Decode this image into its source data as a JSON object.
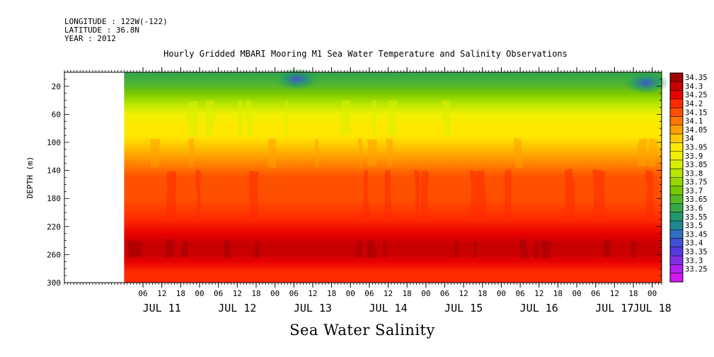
{
  "header": {
    "longitude": "LONGITUDE : 122W(-122)",
    "latitude": "LATITUDE : 36.8N",
    "year": "YEAR : 2012"
  },
  "chart_data": {
    "type": "heatmap",
    "title": "Hourly Gridded MBARI Mooring M1 Sea Water Temperature and Salinity Observations",
    "xlabel": "Sea Water Salinity",
    "ylabel": "DEPTH (m)",
    "y_ticks": [
      20,
      60,
      100,
      140,
      180,
      220,
      260,
      300
    ],
    "ylim": [
      300,
      0
    ],
    "x_range": [
      "2012-07-10T05:00",
      "2012-07-18T03:00"
    ],
    "data_start": "2012-07-11T00:00",
    "x_hour_ticks": [
      {
        "t": "2012-07-11T06:00",
        "label": "06"
      },
      {
        "t": "2012-07-11T12:00",
        "label": "12"
      },
      {
        "t": "2012-07-11T18:00",
        "label": "18"
      },
      {
        "t": "2012-07-12T00:00",
        "label": "00"
      },
      {
        "t": "2012-07-12T06:00",
        "label": "06"
      },
      {
        "t": "2012-07-12T12:00",
        "label": "12"
      },
      {
        "t": "2012-07-12T18:00",
        "label": "18"
      },
      {
        "t": "2012-07-13T00:00",
        "label": "00"
      },
      {
        "t": "2012-07-13T06:00",
        "label": "06"
      },
      {
        "t": "2012-07-13T12:00",
        "label": "12"
      },
      {
        "t": "2012-07-13T18:00",
        "label": "18"
      },
      {
        "t": "2012-07-14T00:00",
        "label": "00"
      },
      {
        "t": "2012-07-14T06:00",
        "label": "06"
      },
      {
        "t": "2012-07-14T12:00",
        "label": "12"
      },
      {
        "t": "2012-07-14T18:00",
        "label": "18"
      },
      {
        "t": "2012-07-15T00:00",
        "label": "00"
      },
      {
        "t": "2012-07-15T06:00",
        "label": "06"
      },
      {
        "t": "2012-07-15T12:00",
        "label": "12"
      },
      {
        "t": "2012-07-15T18:00",
        "label": "18"
      },
      {
        "t": "2012-07-16T00:00",
        "label": "00"
      },
      {
        "t": "2012-07-16T06:00",
        "label": "06"
      },
      {
        "t": "2012-07-16T12:00",
        "label": "12"
      },
      {
        "t": "2012-07-16T18:00",
        "label": "18"
      },
      {
        "t": "2012-07-17T00:00",
        "label": "00"
      },
      {
        "t": "2012-07-17T06:00",
        "label": "06"
      },
      {
        "t": "2012-07-17T12:00",
        "label": "12"
      },
      {
        "t": "2012-07-17T18:00",
        "label": "18"
      },
      {
        "t": "2012-07-18T00:00",
        "label": "00"
      }
    ],
    "x_day_labels": [
      {
        "t": "2012-07-11T12:00",
        "label": "JUL 11"
      },
      {
        "t": "2012-07-12T12:00",
        "label": "JUL 12"
      },
      {
        "t": "2012-07-13T12:00",
        "label": "JUL 13"
      },
      {
        "t": "2012-07-14T12:00",
        "label": "JUL 14"
      },
      {
        "t": "2012-07-15T12:00",
        "label": "JUL 15"
      },
      {
        "t": "2012-07-16T12:00",
        "label": "JUL 16"
      },
      {
        "t": "2012-07-17T12:00",
        "label": "JUL 17"
      },
      {
        "t": "2012-07-18T00:00",
        "label": "JUL 18"
      }
    ],
    "colorbar": {
      "levels": [
        "34.35",
        "34.3",
        "34.25",
        "34.2",
        "34.15",
        "34.1",
        "34.05",
        "34",
        "33.95",
        "33.9",
        "33.85",
        "33.8",
        "33.75",
        "33.7",
        "33.65",
        "33.6",
        "33.55",
        "33.5",
        "33.45",
        "33.4",
        "33.35",
        "33.3",
        "33.25"
      ],
      "colors": [
        "#a00000",
        "#c80000",
        "#e80000",
        "#ff2a00",
        "#ff5000",
        "#ff7800",
        "#ffa000",
        "#ffc800",
        "#ffe800",
        "#f0f000",
        "#d8f000",
        "#b8e600",
        "#98d600",
        "#78c800",
        "#58b828",
        "#38a848",
        "#209870",
        "#208890",
        "#3070c0",
        "#4050d8",
        "#5838e0",
        "#8030e8",
        "#b020f0",
        "#d018f0"
      ]
    },
    "depth_profile": [
      {
        "depth": 5,
        "value": 33.62
      },
      {
        "depth": 20,
        "value": 33.68
      },
      {
        "depth": 30,
        "value": 33.74
      },
      {
        "depth": 45,
        "value": 33.82
      },
      {
        "depth": 60,
        "value": 33.9
      },
      {
        "depth": 75,
        "value": 33.95
      },
      {
        "depth": 90,
        "value": 33.98
      },
      {
        "depth": 105,
        "value": 34.03
      },
      {
        "depth": 120,
        "value": 34.08
      },
      {
        "depth": 135,
        "value": 34.13
      },
      {
        "depth": 150,
        "value": 34.16
      },
      {
        "depth": 180,
        "value": 34.18
      },
      {
        "depth": 210,
        "value": 34.21
      },
      {
        "depth": 230,
        "value": 34.27
      },
      {
        "depth": 245,
        "value": 34.31
      },
      {
        "depth": 258,
        "value": 34.33
      },
      {
        "depth": 270,
        "value": 34.29
      },
      {
        "depth": 285,
        "value": 34.24
      },
      {
        "depth": 300,
        "value": 34.22
      }
    ],
    "low_salinity_patches": [
      {
        "t": "2012-07-13T07:00",
        "depth": 10,
        "value": 33.4
      },
      {
        "t": "2012-07-17T22:00",
        "depth": 15,
        "value": 33.42
      }
    ]
  }
}
